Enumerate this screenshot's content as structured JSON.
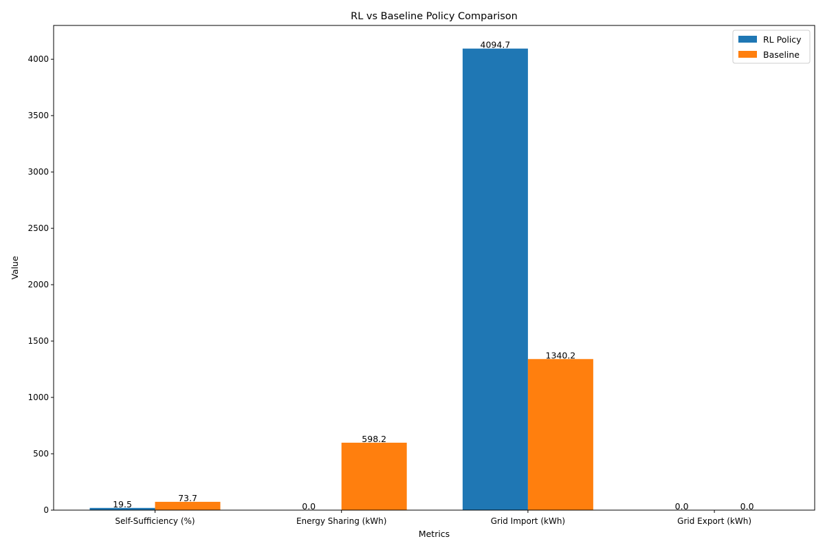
{
  "chart_data": {
    "type": "bar",
    "title": "RL vs Baseline Policy Comparison",
    "xlabel": "Metrics",
    "ylabel": "Value",
    "categories": [
      "Self-Sufficiency (%)",
      "Energy Sharing (kWh)",
      "Grid Import (kWh)",
      "Grid Export (kWh)"
    ],
    "series": [
      {
        "name": "RL Policy",
        "values": [
          19.5,
          0.0,
          4094.7,
          0.0
        ],
        "labels": [
          "19.5",
          "0.0",
          "4094.7",
          "0.0"
        ],
        "color": "#1f77b4"
      },
      {
        "name": "Baseline",
        "values": [
          73.7,
          598.2,
          1340.2,
          0.0
        ],
        "labels": [
          "73.7",
          "598.2",
          "1340.2",
          "0.0"
        ],
        "color": "#ff7f0e"
      }
    ],
    "ylim": [
      0,
      4300
    ],
    "yticks": [
      0,
      500,
      1000,
      1500,
      2000,
      2500,
      3000,
      3500,
      4000
    ],
    "legend": "top-right",
    "grid": false
  }
}
